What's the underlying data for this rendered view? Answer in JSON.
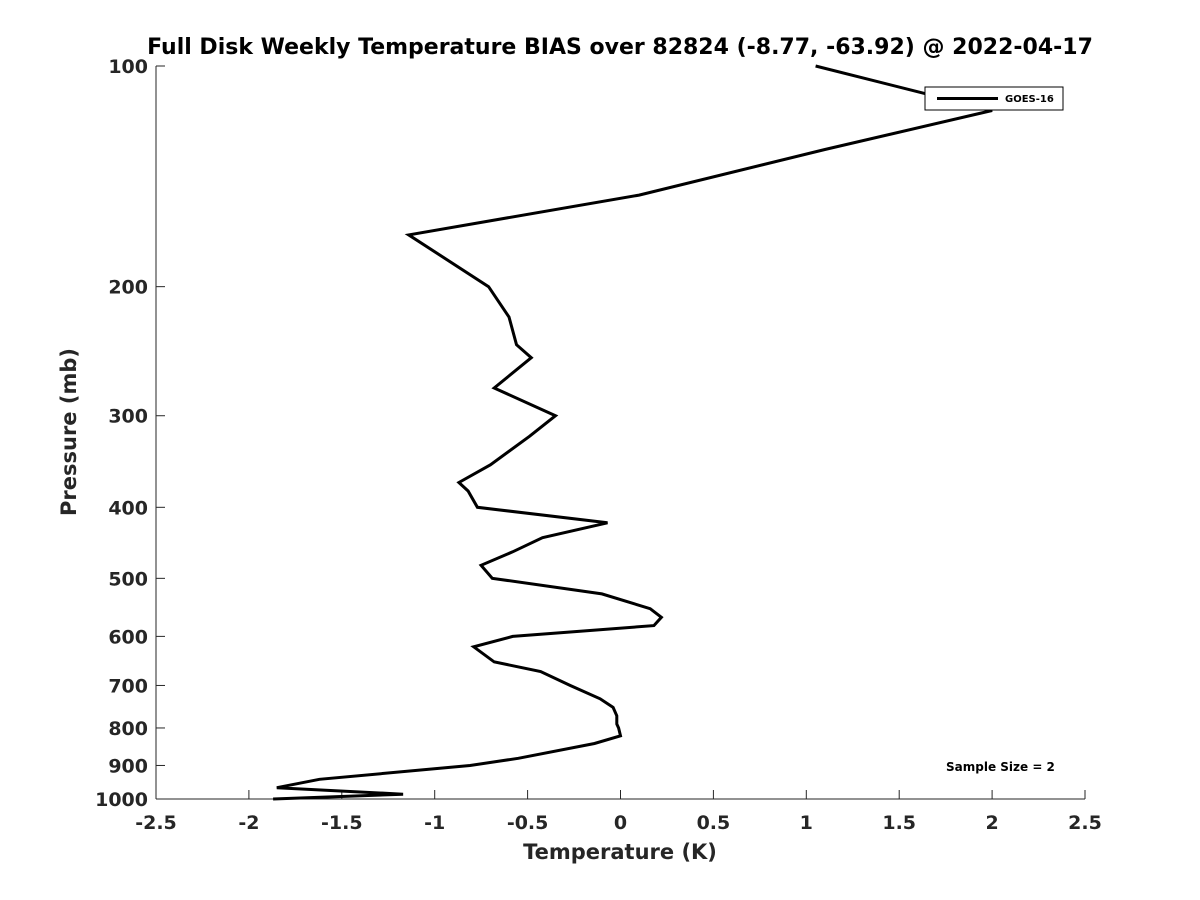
{
  "chart_data": {
    "type": "line",
    "title": "Full Disk Weekly Temperature BIAS over 82824 (-8.77, -63.92) @ 2022-04-17",
    "xlabel": "Temperature (K)",
    "ylabel": "Pressure (mb)",
    "xlim": [
      -2.5,
      2.5
    ],
    "ylim": [
      100,
      1000
    ],
    "y_scale": "log",
    "y_reversed": true,
    "grid": false,
    "legend_position": "top-right",
    "x_ticks": [
      -2.5,
      -2,
      -1.5,
      -1,
      -0.5,
      0,
      0.5,
      1,
      1.5,
      2,
      2.5
    ],
    "x_tick_labels": [
      "-2.5",
      "-2",
      "-1.5",
      "-1",
      "-0.5",
      "0",
      "0.5",
      "1",
      "1.5",
      "2",
      "2.5"
    ],
    "y_ticks": [
      100,
      200,
      300,
      400,
      500,
      600,
      700,
      800,
      900,
      1000
    ],
    "y_tick_labels": [
      "100",
      "200",
      "300",
      "400",
      "500",
      "600",
      "700",
      "800",
      "900",
      "1000"
    ],
    "annotation": "Sample Size = 2",
    "series": [
      {
        "name": "GOES-16",
        "color": "#000000",
        "points": [
          {
            "x": 1.05,
            "y": 100
          },
          {
            "x": 2.0,
            "y": 115
          },
          {
            "x": 1.1,
            "y": 130
          },
          {
            "x": 0.1,
            "y": 150
          },
          {
            "x": -1.14,
            "y": 170
          },
          {
            "x": -0.71,
            "y": 200
          },
          {
            "x": -0.6,
            "y": 220
          },
          {
            "x": -0.56,
            "y": 240
          },
          {
            "x": -0.48,
            "y": 250
          },
          {
            "x": -0.68,
            "y": 275
          },
          {
            "x": -0.35,
            "y": 300
          },
          {
            "x": -0.49,
            "y": 320
          },
          {
            "x": -0.7,
            "y": 350
          },
          {
            "x": -0.87,
            "y": 370
          },
          {
            "x": -0.82,
            "y": 380
          },
          {
            "x": -0.77,
            "y": 400
          },
          {
            "x": -0.07,
            "y": 420
          },
          {
            "x": -0.42,
            "y": 440
          },
          {
            "x": -0.58,
            "y": 460
          },
          {
            "x": -0.75,
            "y": 480
          },
          {
            "x": -0.69,
            "y": 500
          },
          {
            "x": -0.1,
            "y": 525
          },
          {
            "x": 0.16,
            "y": 550
          },
          {
            "x": 0.22,
            "y": 565
          },
          {
            "x": 0.18,
            "y": 580
          },
          {
            "x": -0.58,
            "y": 600
          },
          {
            "x": -0.79,
            "y": 620
          },
          {
            "x": -0.68,
            "y": 650
          },
          {
            "x": -0.43,
            "y": 670
          },
          {
            "x": -0.27,
            "y": 700
          },
          {
            "x": -0.11,
            "y": 730
          },
          {
            "x": -0.04,
            "y": 750
          },
          {
            "x": -0.02,
            "y": 770
          },
          {
            "x": -0.02,
            "y": 790
          },
          {
            "x": -0.01,
            "y": 800
          },
          {
            "x": 0.0,
            "y": 820
          },
          {
            "x": -0.14,
            "y": 840
          },
          {
            "x": -0.55,
            "y": 880
          },
          {
            "x": -0.81,
            "y": 900
          },
          {
            "x": -1.62,
            "y": 940
          },
          {
            "x": -1.85,
            "y": 965
          },
          {
            "x": -1.17,
            "y": 985
          },
          {
            "x": -1.87,
            "y": 1000
          }
        ]
      }
    ]
  }
}
